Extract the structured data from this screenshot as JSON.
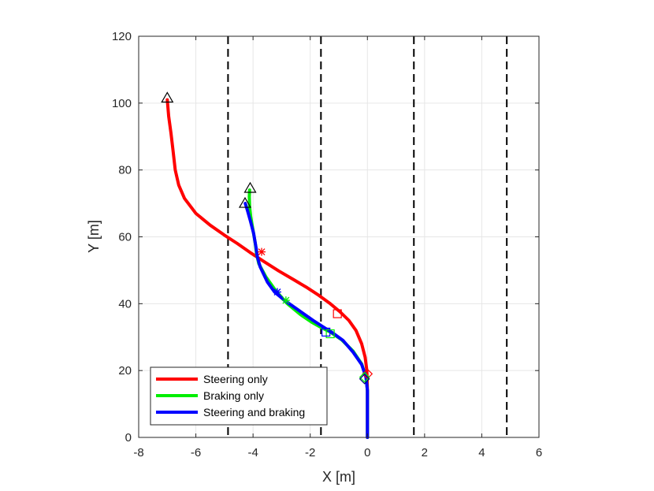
{
  "chart_data": {
    "type": "line",
    "title": "",
    "xlabel": "X [m]",
    "ylabel": "Y [m]",
    "xlim": [
      -8,
      6
    ],
    "ylim": [
      0,
      120
    ],
    "grid": true,
    "legend_position": "bottom-left",
    "x_ticks": [
      "-8",
      "-6",
      "-4",
      "-2",
      "0",
      "2",
      "4",
      "6"
    ],
    "y_ticks": [
      "0",
      "20",
      "40",
      "60",
      "80",
      "100",
      "120"
    ],
    "lane_lines_x": [
      -4.875,
      -1.625,
      1.625,
      4.875
    ],
    "series": [
      {
        "name": "Steering only",
        "color": "#ff0000",
        "x": [
          0,
          0,
          -0.02,
          -0.08,
          -0.2,
          -0.4,
          -0.65,
          -0.95,
          -1.3,
          -1.7,
          -2.15,
          -2.6,
          -3.1,
          -3.6,
          -4.1,
          -4.55,
          -5.0,
          -5.5,
          -6.0,
          -6.4,
          -6.6,
          -6.72,
          -6.8,
          -6.87,
          -6.95,
          -7.0
        ],
        "y": [
          0,
          14,
          20,
          24,
          28,
          32,
          35,
          37.5,
          40,
          42.5,
          45,
          47.3,
          49.8,
          52.5,
          55.3,
          58,
          60.5,
          63.5,
          67,
          71.5,
          75.5,
          80,
          86,
          91,
          96,
          101
        ],
        "markers": [
          {
            "symbol": "diamond",
            "x": 0.0,
            "y": 19
          },
          {
            "symbol": "square",
            "x": -1.05,
            "y": 37
          },
          {
            "symbol": "star",
            "x": -3.7,
            "y": 55.5
          }
        ]
      },
      {
        "name": "Braking only",
        "color": "#00ee00",
        "x": [
          0,
          0,
          -0.05,
          -0.2,
          -0.5,
          -0.9,
          -1.3,
          -1.6,
          -1.95,
          -2.35,
          -2.8,
          -3.2,
          -3.55,
          -3.8,
          -3.88,
          -3.92,
          -4.0,
          -4.08,
          -4.12,
          -4.13,
          -4.12
        ],
        "y": [
          0,
          14,
          18,
          22,
          25.8,
          29.2,
          31.5,
          32.8,
          34.5,
          36.8,
          40,
          43.8,
          48,
          52,
          55,
          58,
          62,
          66,
          69,
          72,
          74
        ]
      },
      {
        "name": "Steering and braking",
        "color": "#0000ff",
        "x": [
          0,
          0,
          -0.05,
          -0.2,
          -0.5,
          -0.85,
          -1.2,
          -1.5,
          -1.9,
          -2.4,
          -2.9,
          -3.25,
          -3.5,
          -3.75,
          -3.85,
          -3.9,
          -3.98,
          -4.1,
          -4.2,
          -4.27
        ],
        "y": [
          0,
          14,
          18,
          21.8,
          25.5,
          29,
          31.2,
          32.8,
          35,
          38,
          41,
          43.5,
          46.5,
          51,
          54,
          57,
          61,
          65,
          68,
          70
        ]
      }
    ],
    "start_markers": [
      {
        "symbol": "triangle",
        "x": -7.0,
        "y": 101.5
      },
      {
        "symbol": "triangle",
        "x": -4.1,
        "y": 74.5
      },
      {
        "symbol": "triangle",
        "x": -4.28,
        "y": 70
      }
    ],
    "event_markers": [
      {
        "series": "Braking only",
        "symbol": "diamond",
        "color": "#00ee00",
        "x": -0.1,
        "y": 18
      },
      {
        "series": "Braking only",
        "symbol": "square",
        "color": "#00ee00",
        "x": -1.3,
        "y": 31
      },
      {
        "series": "Braking only",
        "symbol": "star",
        "color": "#00ee00",
        "x": -2.85,
        "y": 41
      },
      {
        "series": "Steering and braking",
        "symbol": "diamond",
        "color": "#000080",
        "x": -0.1,
        "y": 17.5
      },
      {
        "series": "Steering and braking",
        "symbol": "square",
        "color": "#0000ff",
        "x": -1.45,
        "y": 31.5
      },
      {
        "series": "Steering and braking",
        "symbol": "star",
        "color": "#0000ff",
        "x": -3.15,
        "y": 43.5
      }
    ]
  }
}
